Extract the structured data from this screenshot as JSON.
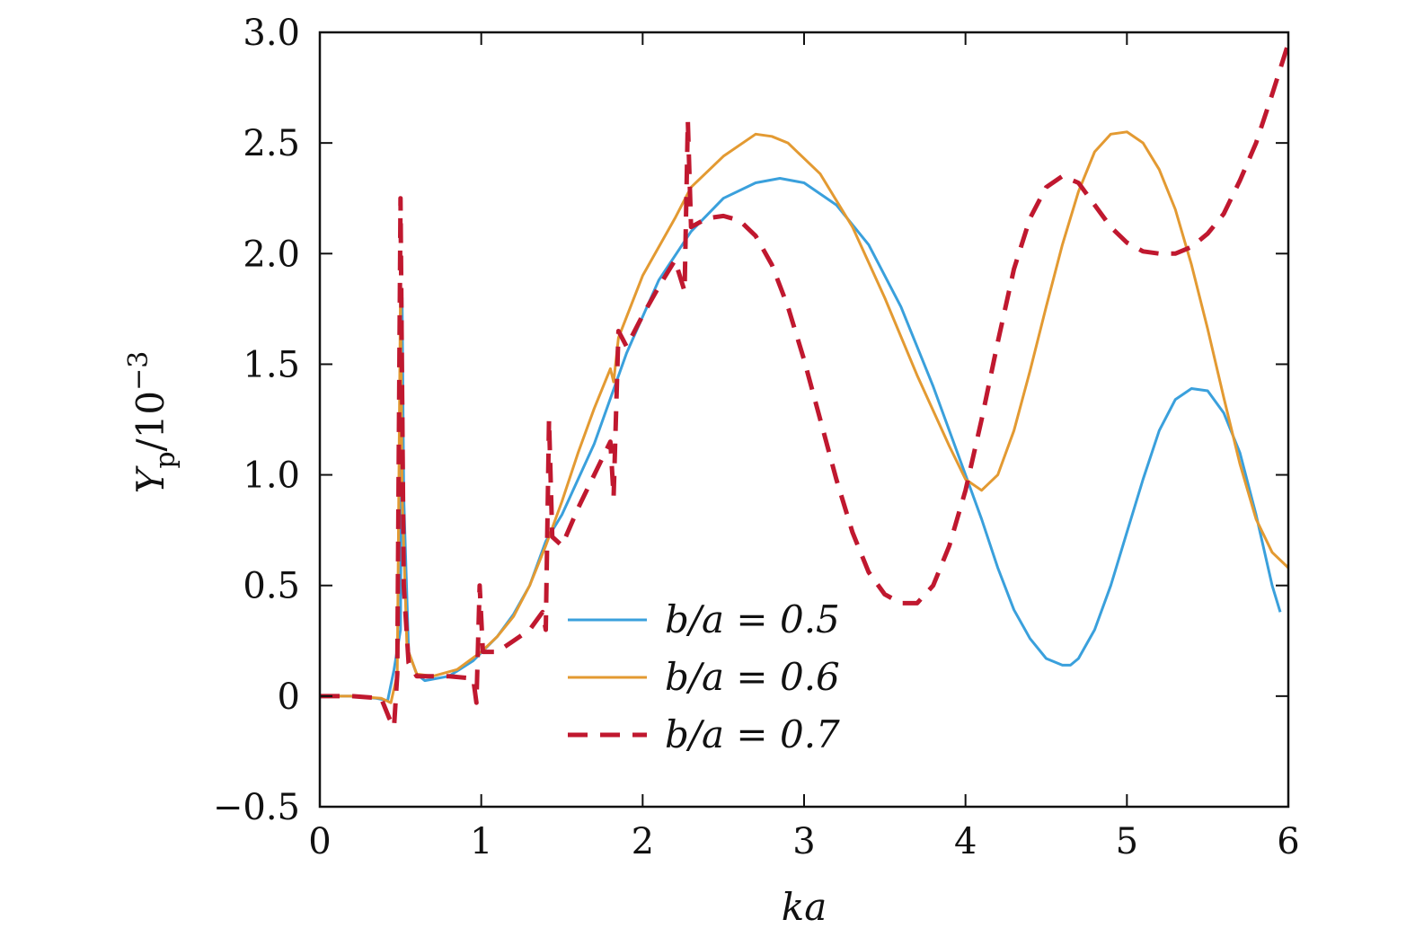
{
  "chart_data": {
    "type": "line",
    "title": "",
    "xlabel": "ka",
    "ylabel": "Y_p/10^-3",
    "ylabel_main": "Y",
    "ylabel_sub": "p",
    "ylabel_rest": "/10",
    "ylabel_sup": "−3",
    "xlim": [
      0,
      6
    ],
    "ylim": [
      -0.5,
      3.0
    ],
    "xticks": [
      0,
      1,
      2,
      3,
      4,
      5,
      6
    ],
    "xtick_labels": [
      "0",
      "1",
      "2",
      "3",
      "4",
      "5",
      "6"
    ],
    "yticks": [
      -0.5,
      0,
      0.5,
      1.0,
      1.5,
      2.0,
      2.5,
      3.0
    ],
    "ytick_labels": [
      "−0.5",
      "0",
      "0.5",
      "1.0",
      "1.5",
      "2.0",
      "2.5",
      "3.0"
    ],
    "grid": false,
    "legend_position": "lower-center",
    "series": [
      {
        "name": "b/a = 0.5",
        "color": "#3aa0dc",
        "dash": "solid",
        "points": [
          [
            0,
            0
          ],
          [
            0.2,
            0
          ],
          [
            0.35,
            -0.01
          ],
          [
            0.42,
            -0.02
          ],
          [
            0.46,
            0.12
          ],
          [
            0.5,
            0.3
          ],
          [
            0.51,
            1.8
          ],
          [
            0.52,
            0.9
          ],
          [
            0.55,
            0.2
          ],
          [
            0.6,
            0.1
          ],
          [
            0.65,
            0.07
          ],
          [
            0.8,
            0.09
          ],
          [
            0.95,
            0.16
          ],
          [
            1.1,
            0.27
          ],
          [
            1.2,
            0.37
          ],
          [
            1.3,
            0.5
          ],
          [
            1.4,
            0.7
          ],
          [
            1.5,
            0.82
          ],
          [
            1.7,
            1.14
          ],
          [
            1.9,
            1.55
          ],
          [
            2.1,
            1.88
          ],
          [
            2.3,
            2.1
          ],
          [
            2.5,
            2.25
          ],
          [
            2.7,
            2.32
          ],
          [
            2.85,
            2.34
          ],
          [
            3.0,
            2.32
          ],
          [
            3.2,
            2.22
          ],
          [
            3.4,
            2.04
          ],
          [
            3.6,
            1.76
          ],
          [
            3.8,
            1.4
          ],
          [
            4.0,
            1.0
          ],
          [
            4.1,
            0.8
          ],
          [
            4.2,
            0.58
          ],
          [
            4.3,
            0.39
          ],
          [
            4.4,
            0.26
          ],
          [
            4.5,
            0.17
          ],
          [
            4.6,
            0.14
          ],
          [
            4.65,
            0.14
          ],
          [
            4.7,
            0.17
          ],
          [
            4.8,
            0.3
          ],
          [
            4.9,
            0.5
          ],
          [
            5.0,
            0.74
          ],
          [
            5.1,
            0.98
          ],
          [
            5.2,
            1.2
          ],
          [
            5.3,
            1.34
          ],
          [
            5.4,
            1.39
          ],
          [
            5.5,
            1.38
          ],
          [
            5.6,
            1.28
          ],
          [
            5.7,
            1.1
          ],
          [
            5.8,
            0.82
          ],
          [
            5.9,
            0.5
          ],
          [
            5.95,
            0.38
          ]
        ]
      },
      {
        "name": "b/a = 0.6",
        "color": "#e39a32",
        "dash": "solid",
        "points": [
          [
            0,
            0
          ],
          [
            0.2,
            0
          ],
          [
            0.38,
            -0.01
          ],
          [
            0.44,
            -0.03
          ],
          [
            0.48,
            0.1
          ],
          [
            0.5,
            1.85
          ],
          [
            0.51,
            0.9
          ],
          [
            0.54,
            0.22
          ],
          [
            0.6,
            0.1
          ],
          [
            0.7,
            0.09
          ],
          [
            0.85,
            0.12
          ],
          [
            1.0,
            0.2
          ],
          [
            1.1,
            0.27
          ],
          [
            1.2,
            0.36
          ],
          [
            1.3,
            0.5
          ],
          [
            1.4,
            0.68
          ],
          [
            1.5,
            0.88
          ],
          [
            1.6,
            1.1
          ],
          [
            1.7,
            1.3
          ],
          [
            1.8,
            1.48
          ],
          [
            1.82,
            1.42
          ],
          [
            1.85,
            1.62
          ],
          [
            2.0,
            1.9
          ],
          [
            2.2,
            2.16
          ],
          [
            2.3,
            2.3
          ],
          [
            2.5,
            2.44
          ],
          [
            2.7,
            2.54
          ],
          [
            2.8,
            2.53
          ],
          [
            2.9,
            2.5
          ],
          [
            3.1,
            2.36
          ],
          [
            3.3,
            2.12
          ],
          [
            3.5,
            1.8
          ],
          [
            3.7,
            1.45
          ],
          [
            3.9,
            1.13
          ],
          [
            4.0,
            0.98
          ],
          [
            4.1,
            0.93
          ],
          [
            4.2,
            1.0
          ],
          [
            4.3,
            1.2
          ],
          [
            4.4,
            1.47
          ],
          [
            4.5,
            1.76
          ],
          [
            4.6,
            2.04
          ],
          [
            4.7,
            2.28
          ],
          [
            4.8,
            2.46
          ],
          [
            4.9,
            2.54
          ],
          [
            5.0,
            2.55
          ],
          [
            5.1,
            2.5
          ],
          [
            5.2,
            2.38
          ],
          [
            5.3,
            2.2
          ],
          [
            5.4,
            1.95
          ],
          [
            5.5,
            1.66
          ],
          [
            5.6,
            1.35
          ],
          [
            5.7,
            1.05
          ],
          [
            5.8,
            0.8
          ],
          [
            5.9,
            0.65
          ],
          [
            6.0,
            0.58
          ]
        ]
      },
      {
        "name": "b/a = 0.7",
        "color": "#c0182f",
        "dash": "dashed",
        "points": [
          [
            0,
            0
          ],
          [
            0.2,
            0
          ],
          [
            0.38,
            -0.01
          ],
          [
            0.43,
            -0.1
          ],
          [
            0.46,
            -0.14
          ],
          [
            0.48,
            0.1
          ],
          [
            0.5,
            2.25
          ],
          [
            0.52,
            0.5
          ],
          [
            0.55,
            0.15
          ],
          [
            0.6,
            0.09
          ],
          [
            0.7,
            0.09
          ],
          [
            0.8,
            0.09
          ],
          [
            0.95,
            0.08
          ],
          [
            0.97,
            -0.03
          ],
          [
            0.99,
            0.5
          ],
          [
            1.01,
            0.2
          ],
          [
            1.1,
            0.2
          ],
          [
            1.2,
            0.25
          ],
          [
            1.3,
            0.3
          ],
          [
            1.38,
            0.38
          ],
          [
            1.4,
            0.3
          ],
          [
            1.42,
            1.25
          ],
          [
            1.44,
            0.72
          ],
          [
            1.5,
            0.68
          ],
          [
            1.6,
            0.85
          ],
          [
            1.7,
            1.0
          ],
          [
            1.8,
            1.15
          ],
          [
            1.82,
            0.9
          ],
          [
            1.85,
            1.65
          ],
          [
            1.9,
            1.58
          ],
          [
            2.0,
            1.72
          ],
          [
            2.1,
            1.85
          ],
          [
            2.2,
            1.97
          ],
          [
            2.26,
            1.83
          ],
          [
            2.28,
            2.6
          ],
          [
            2.3,
            2.12
          ],
          [
            2.4,
            2.16
          ],
          [
            2.5,
            2.17
          ],
          [
            2.6,
            2.15
          ],
          [
            2.7,
            2.08
          ],
          [
            2.8,
            1.95
          ],
          [
            2.9,
            1.76
          ],
          [
            3.0,
            1.52
          ],
          [
            3.1,
            1.25
          ],
          [
            3.2,
            0.98
          ],
          [
            3.3,
            0.74
          ],
          [
            3.4,
            0.56
          ],
          [
            3.5,
            0.46
          ],
          [
            3.6,
            0.42
          ],
          [
            3.7,
            0.42
          ],
          [
            3.8,
            0.5
          ],
          [
            3.9,
            0.68
          ],
          [
            4.0,
            0.93
          ],
          [
            4.1,
            1.25
          ],
          [
            4.2,
            1.6
          ],
          [
            4.3,
            1.93
          ],
          [
            4.4,
            2.16
          ],
          [
            4.5,
            2.3
          ],
          [
            4.6,
            2.35
          ],
          [
            4.7,
            2.32
          ],
          [
            4.8,
            2.22
          ],
          [
            4.9,
            2.12
          ],
          [
            5.0,
            2.05
          ],
          [
            5.1,
            2.01
          ],
          [
            5.2,
            2.0
          ],
          [
            5.3,
            2.0
          ],
          [
            5.4,
            2.03
          ],
          [
            5.5,
            2.09
          ],
          [
            5.6,
            2.18
          ],
          [
            5.7,
            2.33
          ],
          [
            5.8,
            2.5
          ],
          [
            5.9,
            2.72
          ],
          [
            6.0,
            2.95
          ]
        ]
      }
    ]
  }
}
